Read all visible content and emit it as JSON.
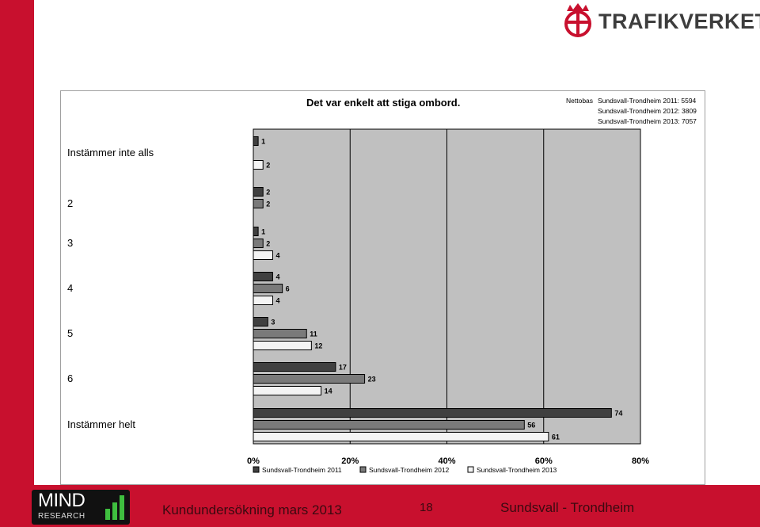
{
  "brand": {
    "logo_text": "TRAFIKVERKET"
  },
  "footer": {
    "mind_top": "MIND",
    "mind_bottom": "RESEARCH",
    "survey": "Kundundersökning mars 2013",
    "page": "18",
    "route": "Sundsvall - Trondheim"
  },
  "chart_data": {
    "type": "bar",
    "orientation": "horizontal",
    "title": "Det var enkelt att stiga ombord.",
    "nettobas_label": "Nettobas",
    "nettobas": [
      {
        "name": "Sundsvall-Trondheim 2011",
        "value": "5594"
      },
      {
        "name": "Sundsvall-Trondheim 2012",
        "value": "3809"
      },
      {
        "name": "Sundsvall-Trondheim 2013",
        "value": "7057"
      }
    ],
    "categories": [
      "Instämmer inte alls",
      "2",
      "3",
      "4",
      "5",
      "6",
      "Instämmer helt"
    ],
    "series": [
      {
        "name": "Sundsvall-Trondheim 2011",
        "color": "#404040",
        "values": [
          1,
          2,
          1,
          4,
          3,
          17,
          74
        ]
      },
      {
        "name": "Sundsvall-Trondheim 2012",
        "color": "#7a7a7a",
        "values": [
          null,
          2,
          2,
          6,
          11,
          23,
          56
        ]
      },
      {
        "name": "Sundsvall-Trondheim 2013",
        "color": "#f4f4f4",
        "values": [
          2,
          null,
          4,
          4,
          12,
          14,
          61
        ]
      }
    ],
    "xlim": [
      0,
      80
    ],
    "xticks": [
      "0%",
      "20%",
      "40%",
      "60%",
      "80%"
    ],
    "grid": true,
    "legend_position": "bottom",
    "plot_bg": "#c0c0c0"
  },
  "colors": {
    "accent": "#c8102e"
  }
}
